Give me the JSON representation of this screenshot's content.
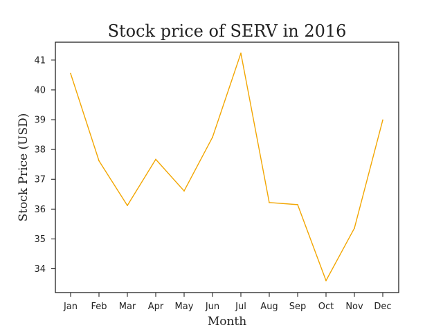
{
  "chart_data": {
    "type": "line",
    "title": "Stock price of SERV in 2016",
    "xlabel": "Month",
    "ylabel": "Stock Price (USD)",
    "categories": [
      "Jan",
      "Feb",
      "Mar",
      "Apr",
      "May",
      "Jun",
      "Jul",
      "Aug",
      "Sep",
      "Oct",
      "Nov",
      "Dec"
    ],
    "series": [
      {
        "values": [
          40.55,
          37.62,
          36.12,
          37.67,
          36.61,
          38.41,
          41.23,
          36.22,
          36.15,
          33.6,
          35.36,
          38.99
        ]
      }
    ],
    "yticks": [
      34,
      35,
      36,
      37,
      38,
      39,
      40,
      41
    ],
    "ylim": [
      33.2,
      41.6
    ],
    "grid": false,
    "line_color": "#f2a602"
  }
}
